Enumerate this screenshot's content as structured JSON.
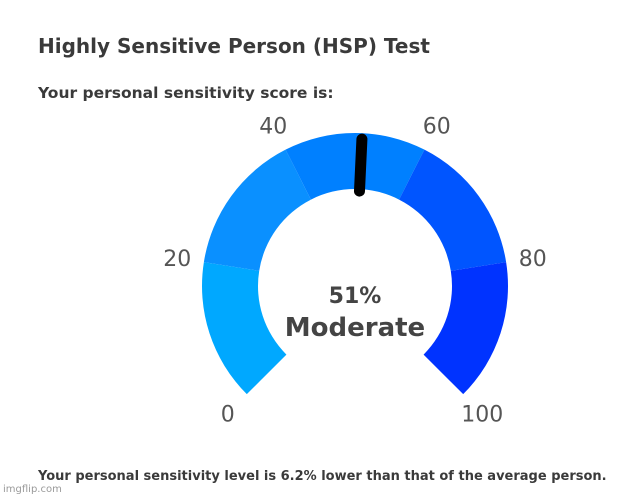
{
  "header": {
    "title": "Highly Sensitive Person (HSP) Test",
    "subtitle": "Your personal sensitivity score is:"
  },
  "gauge": {
    "score_label": "51%",
    "level_label": "Moderate",
    "value": 51,
    "min": 0,
    "max": 100,
    "ticks": [
      "0",
      "20",
      "40",
      "60",
      "80",
      "100"
    ],
    "segments": [
      {
        "from": 0,
        "to": 20,
        "color": "#00a8ff"
      },
      {
        "from": 20,
        "to": 40,
        "color": "#0a90ff"
      },
      {
        "from": 40,
        "to": 60,
        "color": "#0080ff"
      },
      {
        "from": 60,
        "to": 80,
        "color": "#0055ff"
      },
      {
        "from": 80,
        "to": 100,
        "color": "#0033ff"
      }
    ],
    "needle_color": "#000000"
  },
  "footer": {
    "text": "Your personal sensitivity level is 6.2% lower than that of the average person."
  },
  "watermark": {
    "text": "imgflip.com"
  }
}
